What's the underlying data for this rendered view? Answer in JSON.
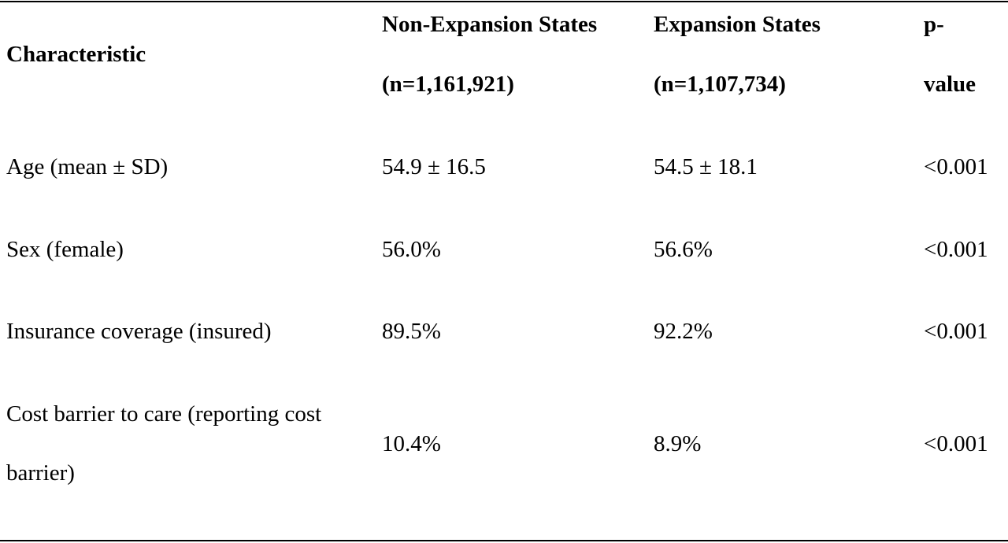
{
  "table": {
    "header": {
      "characteristic": "Characteristic",
      "non_expansion": [
        "Non-Expansion States",
        "(n=1,161,921)"
      ],
      "expansion": [
        "Expansion States",
        "(n=1,107,734)"
      ],
      "pvalue": [
        "p-",
        "value"
      ]
    },
    "rows": [
      {
        "characteristic": [
          "Age (mean ± SD)"
        ],
        "non_expansion": "54.9 ± 16.5",
        "expansion": "54.5 ± 18.1",
        "pvalue": "<0.001"
      },
      {
        "characteristic": [
          "Sex (female)"
        ],
        "non_expansion": "56.0%",
        "expansion": "56.6%",
        "pvalue": "<0.001"
      },
      {
        "characteristic": [
          "Insurance coverage (insured)"
        ],
        "non_expansion": "89.5%",
        "expansion": "92.2%",
        "pvalue": "<0.001"
      },
      {
        "characteristic": [
          "Cost barrier to care (reporting cost",
          "barrier)"
        ],
        "non_expansion": "10.4%",
        "expansion": "8.9%",
        "pvalue": "<0.001"
      }
    ]
  }
}
